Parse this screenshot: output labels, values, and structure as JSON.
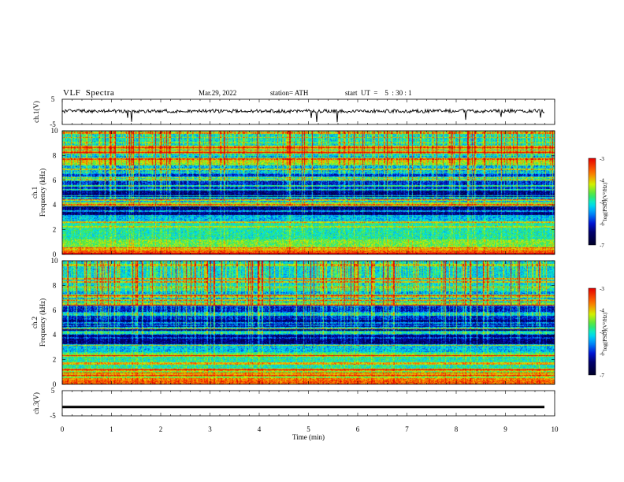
{
  "header": {
    "title": "VLF  Spectra",
    "date": "Mar.29, 2022",
    "station": "station= ATH",
    "start": "start  UT  =    5  : 30 : 1"
  },
  "colors": {
    "spec_deep": "#00003a",
    "spec_blue": "#0014c8",
    "spec_cyan": "#00c8ff",
    "spec_green": "#30e060",
    "spec_yellow": "#e8f000",
    "spec_red": "#e01010",
    "trace": "#000000"
  },
  "chart_data": [
    {
      "type": "line",
      "panel": "ch1",
      "ylabel": "ch.1(V)",
      "ylim": [
        -5,
        5
      ],
      "yticks": [
        "5",
        "-5"
      ],
      "description_series": "noisy trace near 0 V with sparse negative spikes",
      "baseline_v": 0.3,
      "x_range_min": [
        0,
        10
      ]
    },
    {
      "type": "heatmap",
      "panel": "ch1-spectrogram",
      "ylabel_top": "ch.1",
      "ylabel": "Frequency  (kHz)",
      "ylim": [
        0,
        10
      ],
      "yticks": [
        "0",
        "2",
        "4",
        "6",
        "8",
        "10"
      ],
      "colorbar_label": "log(PSD)(V²/Hz)",
      "colorbar_ticks": [
        "-3",
        "-4",
        "-5",
        "-6",
        "-7"
      ],
      "colorbar_range": [
        -7,
        -3
      ]
    },
    {
      "type": "heatmap",
      "panel": "ch2-spectrogram",
      "ylabel_top": "ch.2",
      "ylabel": "Frequency  (kHz)",
      "ylim": [
        0,
        10
      ],
      "yticks": [
        "0",
        "2",
        "4",
        "6",
        "8",
        "10"
      ],
      "colorbar_label": "log(PSD)(V²/Hz)",
      "colorbar_ticks": [
        "-3",
        "-4",
        "-5",
        "-6",
        "-7"
      ],
      "colorbar_range": [
        -7,
        -3
      ]
    },
    {
      "type": "line",
      "panel": "ch3",
      "ylabel": "ch.3(V)",
      "ylim": [
        -5,
        5
      ],
      "yticks": [
        "5",
        "-5"
      ],
      "constant_value_v": -1.5
    }
  ],
  "xaxis": {
    "label": "Time  (min)",
    "ticks": [
      "0",
      "1",
      "2",
      "3",
      "4",
      "5",
      "6",
      "7",
      "8",
      "9",
      "10"
    ],
    "range": [
      0,
      10
    ]
  }
}
